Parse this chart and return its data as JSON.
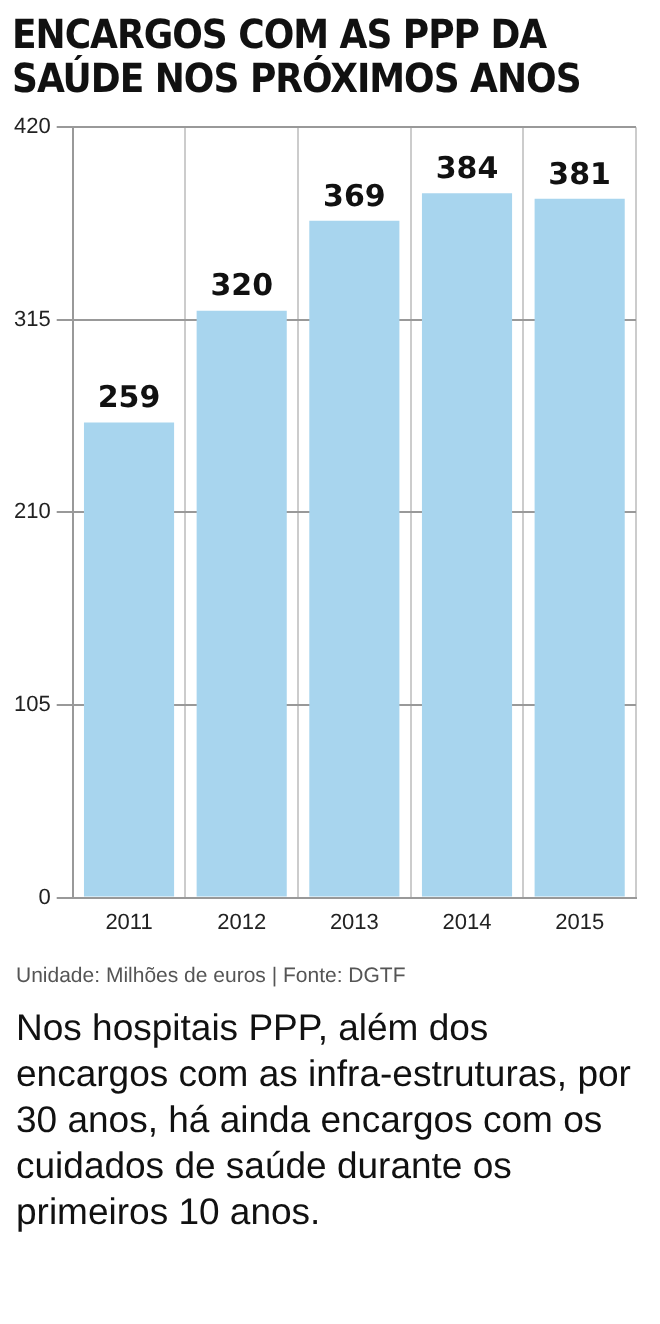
{
  "chart_data": {
    "type": "bar",
    "title": "ENCARGOS COM AS PPP DA SAÚDE NOS PRÓXIMOS ANOS",
    "categories": [
      "2011",
      "2012",
      "2013",
      "2014",
      "2015"
    ],
    "values": [
      259,
      320,
      369,
      384,
      381
    ],
    "color": "#a8d5ee",
    "ylim": [
      0,
      420
    ],
    "yticks": [
      0,
      105,
      210,
      315,
      420
    ],
    "grid": true,
    "data_labels": true,
    "annotations": [
      "Unidade: Milhões de euros | Fonte: DGTF",
      "Nos hospitais PPP, além dos encargos com as infra-estruturas, por 30 anos, há ainda encargos com os cuidados de saúde durante os primeiros 10 anos."
    ]
  }
}
